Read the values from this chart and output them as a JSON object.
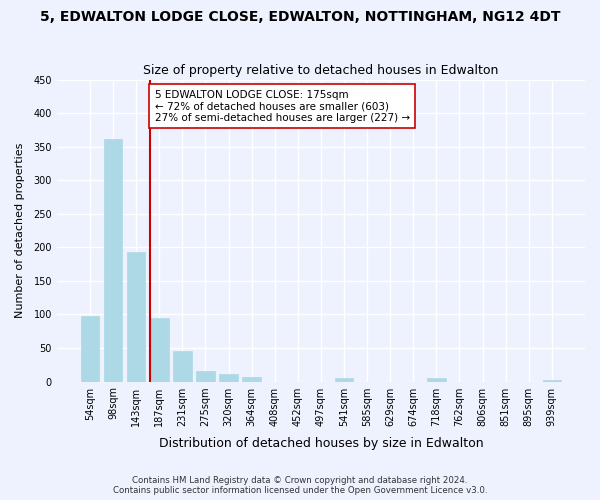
{
  "title": "5, EDWALTON LODGE CLOSE, EDWALTON, NOTTINGHAM, NG12 4DT",
  "subtitle": "Size of property relative to detached houses in Edwalton",
  "xlabel": "Distribution of detached houses by size in Edwalton",
  "ylabel": "Number of detached properties",
  "categories": [
    "54sqm",
    "98sqm",
    "143sqm",
    "187sqm",
    "231sqm",
    "275sqm",
    "320sqm",
    "364sqm",
    "408sqm",
    "452sqm",
    "497sqm",
    "541sqm",
    "585sqm",
    "629sqm",
    "674sqm",
    "718sqm",
    "762sqm",
    "806sqm",
    "851sqm",
    "895sqm",
    "939sqm"
  ],
  "values": [
    97,
    362,
    193,
    95,
    46,
    16,
    11,
    7,
    0,
    0,
    0,
    5,
    0,
    0,
    0,
    5,
    0,
    0,
    0,
    0,
    2
  ],
  "bar_color": "#add8e6",
  "vline_x": 2.6,
  "vline_color": "#cc0000",
  "ylim": [
    0,
    450
  ],
  "yticks": [
    0,
    50,
    100,
    150,
    200,
    250,
    300,
    350,
    400,
    450
  ],
  "annotation_line1": "5 EDWALTON LODGE CLOSE: 175sqm",
  "annotation_line2": "← 72% of detached houses are smaller (603)",
  "annotation_line3": "27% of semi-detached houses are larger (227) →",
  "footnote1": "Contains HM Land Registry data © Crown copyright and database right 2024.",
  "footnote2": "Contains public sector information licensed under the Open Government Licence v3.0.",
  "bg_color": "#eef2ff",
  "plot_bg_color": "#eef2ff"
}
